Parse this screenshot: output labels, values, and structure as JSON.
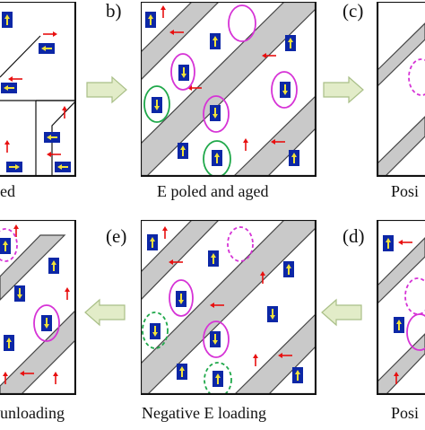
{
  "panels": [
    {
      "id": "a",
      "caption": "ed"
    },
    {
      "id": "b",
      "label": "b)",
      "caption": "E poled and aged"
    },
    {
      "id": "c",
      "label": "(c)",
      "caption": "Posi"
    },
    {
      "id": "f",
      "caption": "unloading"
    },
    {
      "id": "e",
      "label": "(e)",
      "caption": "Negative E loading"
    },
    {
      "id": "d",
      "label": "(d)",
      "caption": "Posi"
    }
  ],
  "colors": {
    "band": "#c9c9c9",
    "band_edge": "#444444",
    "dipole_box": "#0c27a6",
    "dipole_arrow": "#f2e23a",
    "field_arrow": "#e81010",
    "magenta_ellipse": "#d633d6",
    "green_ellipse": "#1fa84a",
    "flow_arrow": "#e2ecc8",
    "flow_arrow_edge": "#a9bf87"
  },
  "icons": {
    "dipole": "yellow-arrow-on-blue-square",
    "field": "red-arrow",
    "flow": "block-arrow"
  }
}
